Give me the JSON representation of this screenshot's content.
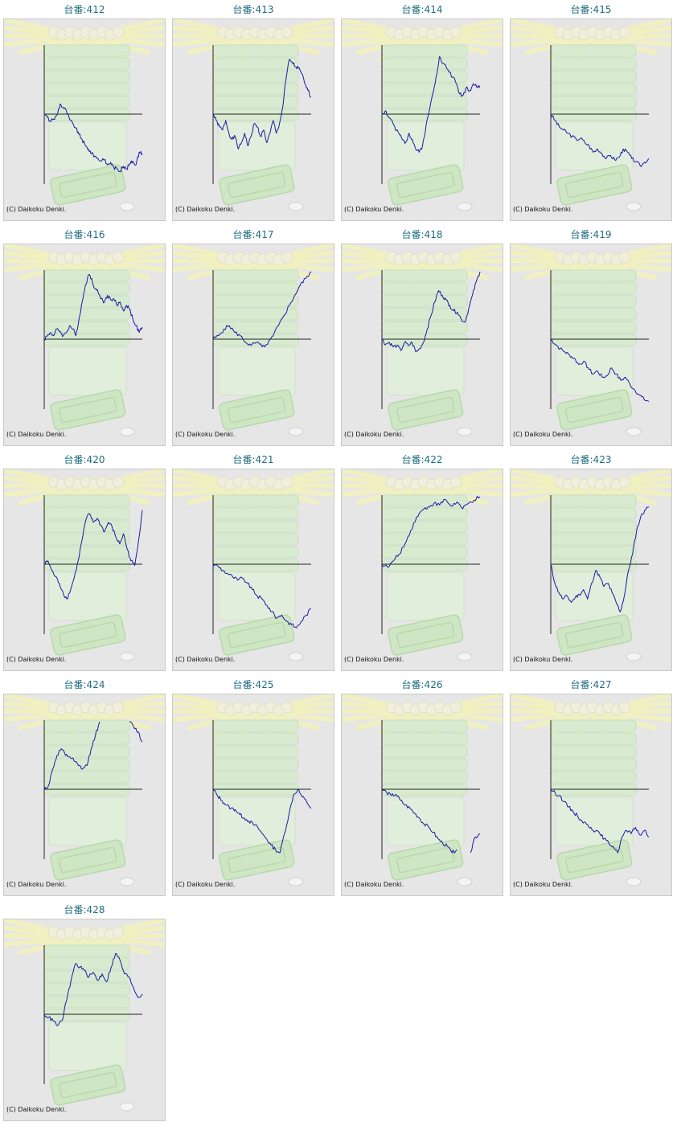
{
  "copyright": "(C) Daikoku Denki.",
  "line_color": "#1a1aa6",
  "axis_color": "#222222",
  "title_color": "#1f6e83",
  "chart_data": [
    {
      "type": "line",
      "title": "台番:412",
      "values": [
        0.0,
        -0.05,
        -0.12,
        -0.08,
        -0.02,
        0.15,
        0.1,
        0.05,
        -0.08,
        -0.15,
        -0.22,
        -0.32,
        -0.4,
        -0.5,
        -0.55,
        -0.62,
        -0.66,
        -0.7,
        -0.74,
        -0.72,
        -0.8,
        -0.76,
        -0.84,
        -0.86,
        -0.9,
        -0.82,
        -0.87,
        -0.78,
        -0.74,
        -0.8,
        -0.6,
        -0.62
      ]
    },
    {
      "type": "line",
      "title": "台番:413",
      "values": [
        0.0,
        -0.1,
        -0.2,
        -0.25,
        -0.1,
        -0.3,
        -0.4,
        -0.35,
        -0.55,
        -0.45,
        -0.3,
        -0.5,
        -0.35,
        -0.15,
        -0.2,
        -0.35,
        -0.25,
        -0.45,
        -0.3,
        -0.1,
        -0.3,
        -0.15,
        0.1,
        0.5,
        0.8,
        0.77,
        0.7,
        0.68,
        0.6,
        0.45,
        0.35,
        0.25
      ]
    },
    {
      "type": "line",
      "title": "台番:414",
      "values": [
        0.0,
        0.05,
        -0.05,
        -0.1,
        -0.25,
        -0.3,
        -0.4,
        -0.45,
        -0.3,
        -0.4,
        -0.55,
        -0.6,
        -0.5,
        -0.2,
        0.05,
        0.3,
        0.55,
        0.85,
        0.75,
        0.7,
        0.62,
        0.55,
        0.45,
        0.3,
        0.28,
        0.4,
        0.35,
        0.45,
        0.4,
        0.42
      ]
    },
    {
      "type": "line",
      "title": "台番:415",
      "values": [
        0.0,
        -0.1,
        -0.2,
        -0.25,
        -0.3,
        -0.35,
        -0.4,
        -0.38,
        -0.45,
        -0.5,
        -0.6,
        -0.55,
        -0.62,
        -0.7,
        -0.65,
        -0.72,
        -0.68,
        -0.55,
        -0.6,
        -0.7,
        -0.75,
        -0.82,
        -0.76,
        -0.7
      ]
    },
    {
      "type": "line",
      "title": "台番:416",
      "values": [
        0.0,
        0.05,
        0.1,
        0.05,
        0.15,
        0.12,
        0.05,
        0.1,
        0.2,
        0.15,
        0.05,
        0.3,
        0.55,
        0.8,
        0.95,
        0.9,
        0.75,
        0.7,
        0.6,
        0.55,
        0.65,
        0.58,
        0.6,
        0.5,
        0.55,
        0.42,
        0.5,
        0.45,
        0.3,
        0.2,
        0.1,
        0.18
      ]
    },
    {
      "type": "line",
      "title": "台番:417",
      "values": [
        0.0,
        0.05,
        0.15,
        0.2,
        0.1,
        0.05,
        -0.05,
        -0.1,
        -0.05,
        -0.12,
        -0.08,
        0.05,
        0.2,
        0.35,
        0.5,
        0.65,
        0.8,
        0.9,
        1.0
      ]
    },
    {
      "type": "line",
      "title": "台番:418",
      "values": [
        0.0,
        -0.08,
        -0.05,
        -0.12,
        -0.1,
        -0.18,
        -0.05,
        -0.1,
        -0.05,
        -0.2,
        -0.15,
        -0.05,
        0.15,
        0.35,
        0.55,
        0.72,
        0.65,
        0.58,
        0.5,
        0.42,
        0.4,
        0.3,
        0.25,
        0.45,
        0.65,
        0.85,
        1.0
      ]
    },
    {
      "type": "line",
      "title": "台番:419",
      "values": [
        0.0,
        -0.08,
        -0.15,
        -0.2,
        -0.25,
        -0.3,
        -0.4,
        -0.35,
        -0.45,
        -0.55,
        -0.5,
        -0.6,
        -0.58,
        -0.45,
        -0.55,
        -0.65,
        -0.6,
        -0.72,
        -0.8,
        -0.88,
        -0.95,
        -0.98
      ]
    },
    {
      "type": "line",
      "title": "台番:420",
      "values": [
        0.0,
        0.05,
        -0.1,
        -0.2,
        -0.3,
        -0.45,
        -0.55,
        -0.4,
        -0.2,
        0.05,
        0.35,
        0.65,
        0.75,
        0.62,
        0.68,
        0.58,
        0.48,
        0.62,
        0.55,
        0.4,
        0.3,
        0.45,
        0.22,
        0.05,
        -0.02,
        0.35,
        0.8
      ]
    },
    {
      "type": "line",
      "title": "台番:421",
      "values": [
        0.0,
        -0.03,
        -0.1,
        -0.15,
        -0.2,
        -0.25,
        -0.22,
        -0.3,
        -0.4,
        -0.5,
        -0.55,
        -0.65,
        -0.75,
        -0.85,
        -0.8,
        -0.9,
        -0.95,
        -1.0,
        -0.9,
        -0.8,
        -0.7
      ]
    },
    {
      "type": "line",
      "title": "台番:422",
      "values": [
        0.0,
        -0.05,
        0.05,
        0.15,
        0.3,
        0.5,
        0.7,
        0.8,
        0.85,
        0.9,
        0.88,
        0.96,
        0.86,
        0.92,
        0.82,
        0.9,
        0.95,
        1.0
      ]
    },
    {
      "type": "line",
      "title": "台番:423",
      "values": [
        0.0,
        -0.3,
        -0.45,
        -0.55,
        -0.5,
        -0.6,
        -0.52,
        -0.48,
        -0.4,
        -0.55,
        -0.3,
        -0.1,
        -0.2,
        -0.35,
        -0.3,
        -0.45,
        -0.6,
        -0.75,
        -0.5,
        -0.1,
        0.15,
        0.5,
        0.7,
        0.8,
        0.85
      ]
    },
    {
      "type": "line",
      "title": "台番:424",
      "values": [
        0.0,
        0.05,
        0.3,
        0.5,
        0.6,
        0.5,
        0.48,
        0.42,
        0.35,
        0.3,
        0.35,
        0.6,
        0.8,
        1.0,
        null,
        null,
        null,
        null,
        null,
        null,
        1.0,
        0.92,
        0.85,
        0.7
      ]
    },
    {
      "type": "line",
      "title": "台番:425",
      "values": [
        0.0,
        -0.1,
        -0.18,
        -0.25,
        -0.3,
        -0.32,
        -0.4,
        -0.45,
        -0.5,
        -0.55,
        -0.6,
        -0.7,
        -0.78,
        -0.88,
        -0.95,
        -1.0,
        -0.7,
        -0.4,
        -0.1,
        0.0,
        -0.12,
        -0.2,
        -0.3
      ]
    },
    {
      "type": "line",
      "title": "台番:426",
      "values": [
        0.0,
        -0.05,
        -0.1,
        -0.08,
        -0.18,
        -0.25,
        -0.3,
        -0.38,
        -0.45,
        -0.55,
        -0.6,
        -0.68,
        -0.78,
        -0.85,
        -0.9,
        -1.0,
        -0.95,
        null,
        null,
        -1.0,
        -0.75,
        -0.7
      ]
    },
    {
      "type": "line",
      "title": "台番:427",
      "values": [
        0.0,
        -0.06,
        -0.1,
        -0.2,
        -0.28,
        -0.35,
        -0.42,
        -0.5,
        -0.55,
        -0.6,
        -0.66,
        -0.7,
        -0.78,
        -0.85,
        -0.9,
        -1.0,
        -0.75,
        -0.65,
        -0.7,
        -0.6,
        -0.72,
        -0.65,
        -0.75
      ]
    },
    {
      "type": "line",
      "title": "台番:428",
      "values": [
        0.0,
        -0.05,
        -0.1,
        -0.18,
        -0.1,
        0.2,
        0.5,
        0.75,
        0.7,
        0.65,
        0.55,
        0.62,
        0.5,
        0.6,
        0.48,
        0.7,
        0.9,
        0.8,
        0.6,
        0.55,
        0.4,
        0.25,
        0.3
      ]
    }
  ]
}
